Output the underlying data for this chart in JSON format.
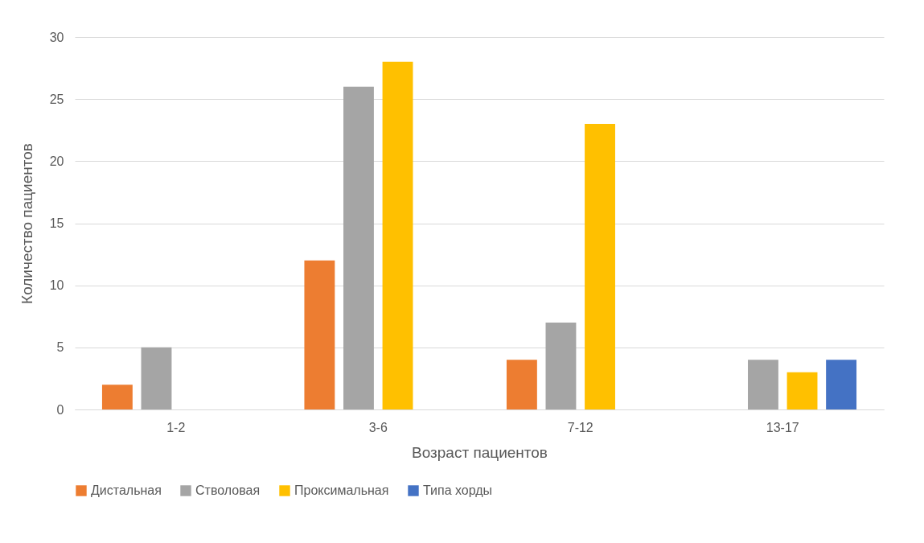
{
  "chart_data": {
    "type": "bar",
    "xlabel": "Возраст пациентов",
    "ylabel": "Количество пациентов",
    "categories": [
      "1-2",
      "3-6",
      "7-12",
      "13-17"
    ],
    "series": [
      {
        "name": "Дистальная",
        "color": "#ed7d31",
        "values": [
          2,
          12,
          4,
          null
        ]
      },
      {
        "name": "Стволовая",
        "color": "#a5a5a5",
        "values": [
          5,
          26,
          7,
          4
        ]
      },
      {
        "name": "Проксимальная",
        "color": "#ffc000",
        "values": [
          null,
          28,
          23,
          3
        ]
      },
      {
        "name": "Типа хорды",
        "color": "#4472c4",
        "values": [
          null,
          null,
          null,
          4
        ]
      }
    ],
    "ylim": [
      0,
      30
    ],
    "yticks": [
      0,
      5,
      10,
      15,
      20,
      25,
      30
    ],
    "grid": "y",
    "legend": "bottom"
  }
}
